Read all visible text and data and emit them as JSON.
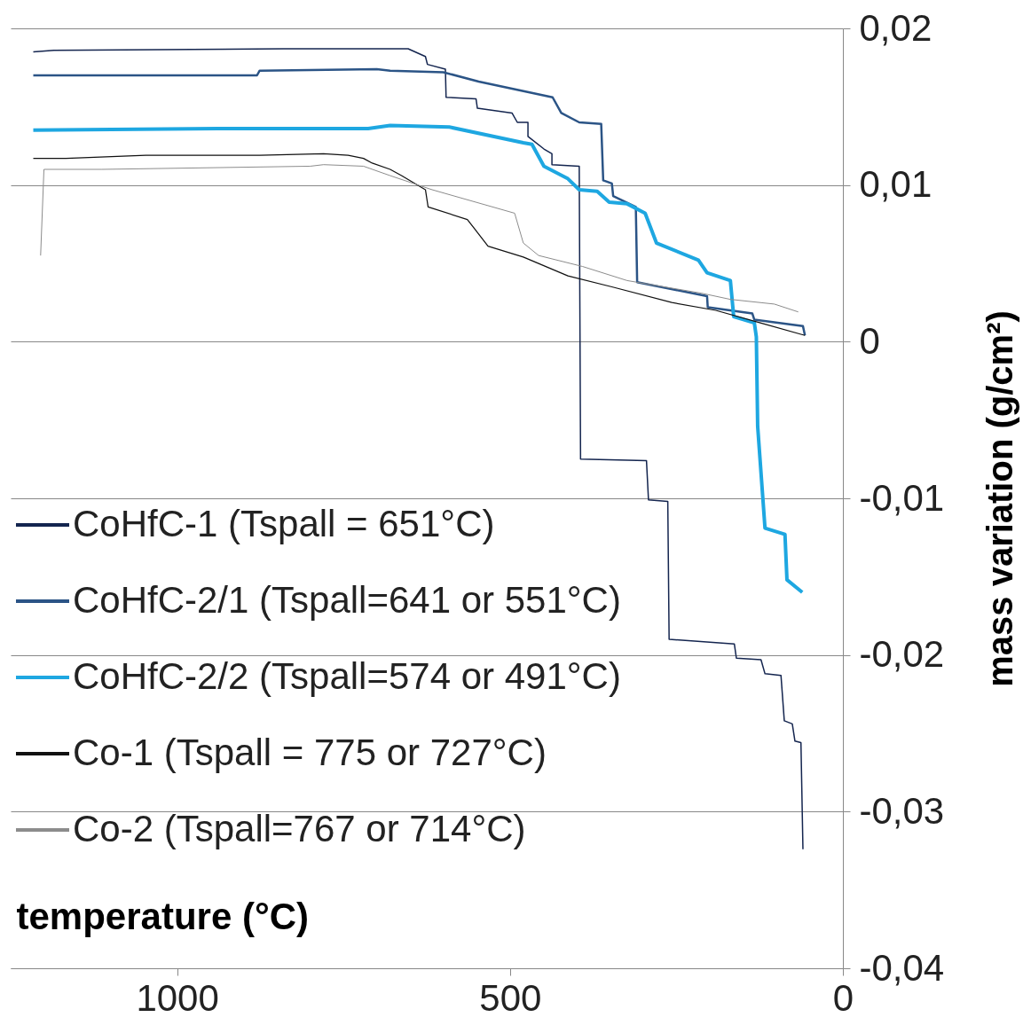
{
  "chart_data": {
    "type": "line",
    "xlabel": "temperature (°C)",
    "ylabel": "mass variation (g/cm²)",
    "xlim": [
      1250,
      0
    ],
    "xticks": [
      1000,
      500,
      0
    ],
    "ylim": [
      -0.04,
      0.02
    ],
    "yticks": [
      {
        "value": -0.04,
        "label": "-0,04"
      },
      {
        "value": -0.03,
        "label": "-0,03"
      },
      {
        "value": -0.02,
        "label": "-0,02"
      },
      {
        "value": -0.01,
        "label": "-0,01"
      },
      {
        "value": 0,
        "label": "0"
      },
      {
        "value": 0.01,
        "label": "0,01"
      },
      {
        "value": 0.02,
        "label": "0,02"
      }
    ],
    "grid": "y",
    "legend": "left",
    "line_style": "solid",
    "marker": "none",
    "series": [
      {
        "name": "CoHfC-1 (Tspall = 651°C)",
        "color": "#14254f",
        "x": [
          1216,
          1185,
          840,
          653,
          627,
          624,
          597,
          596,
          551,
          549,
          497,
          489,
          473,
          473,
          449,
          437,
          437,
          396,
          394,
          295,
          292,
          263,
          261,
          163,
          160,
          123,
          117,
          93,
          88,
          76,
          72,
          63,
          60
        ],
        "values": [
          0.0185,
          0.0186,
          0.0187,
          0.0187,
          0.0182,
          0.0177,
          0.0174,
          0.0156,
          0.0155,
          0.0149,
          0.0146,
          0.014,
          0.014,
          0.0131,
          0.0123,
          0.012,
          0.0113,
          0.0112,
          -0.0075,
          -0.0076,
          -0.0101,
          -0.0102,
          -0.019,
          -0.0193,
          -0.0202,
          -0.0203,
          -0.0212,
          -0.0213,
          -0.0242,
          -0.0244,
          -0.0255,
          -0.0256,
          -0.0324
        ]
      },
      {
        "name": "CoHfC-2/1 (Tspall=641 or 551°C)",
        "color": "#2b5486",
        "x": [
          1216,
          880,
          876,
          700,
          680,
          600,
          547,
          436,
          423,
          396,
          363,
          360,
          347,
          345,
          311,
          309,
          204,
          203,
          136,
          133,
          60,
          57
        ],
        "values": [
          0.017,
          0.017,
          0.0173,
          0.0174,
          0.0173,
          0.0172,
          0.0166,
          0.0156,
          0.0146,
          0.014,
          0.0139,
          0.0103,
          0.0101,
          0.0093,
          0.0086,
          0.0038,
          0.0029,
          0.0022,
          0.0018,
          0.0014,
          0.001,
          0.0004
        ]
      },
      {
        "name": "CoHfC-2/2 (Tspall=574 or 491°C)",
        "color": "#1ea7e1",
        "x": [
          1216,
          940,
          713,
          680,
          591,
          480,
          467,
          449,
          413,
          396,
          369,
          351,
          324,
          297,
          280,
          217,
          204,
          169,
          164,
          133,
          130,
          128,
          117,
          87,
          84,
          61
        ],
        "values": [
          0.0135,
          0.0136,
          0.0136,
          0.0138,
          0.0137,
          0.0127,
          0.0126,
          0.0112,
          0.0104,
          0.0097,
          0.0096,
          0.0089,
          0.0088,
          0.0082,
          0.0063,
          0.0052,
          0.0044,
          0.0039,
          0.0016,
          0.0012,
          0.0003,
          -0.0054,
          -0.0119,
          -0.0123,
          -0.0152,
          -0.016
        ]
      },
      {
        "name": "Co-1 (Tspall = 775 or 727°C)",
        "color": "#111111",
        "x": [
          1216,
          1167,
          1047,
          876,
          780,
          743,
          720,
          707,
          680,
          663,
          627,
          623,
          564,
          533,
          480,
          413,
          347,
          257,
          191,
          124,
          57
        ],
        "values": [
          0.0117,
          0.0117,
          0.0119,
          0.0119,
          0.012,
          0.0119,
          0.0117,
          0.0114,
          0.011,
          0.0106,
          0.0097,
          0.0086,
          0.0078,
          0.0061,
          0.0054,
          0.0042,
          0.0035,
          0.0025,
          0.002,
          0.0012,
          0.0004
        ]
      },
      {
        "name": "Co-2 (Tspall=767 or 714°C)",
        "color": "#8c8c8c",
        "x": [
          1205,
          1200,
          1113,
          800,
          780,
          720,
          680,
          617,
          493,
          480,
          457,
          391,
          324,
          213,
          169,
          103,
          67
        ],
        "values": [
          0.0055,
          0.011,
          0.011,
          0.0112,
          0.0113,
          0.0112,
          0.0106,
          0.0097,
          0.0082,
          0.0063,
          0.0055,
          0.0048,
          0.0039,
          0.0031,
          0.0027,
          0.0024,
          0.0019
        ]
      }
    ]
  }
}
